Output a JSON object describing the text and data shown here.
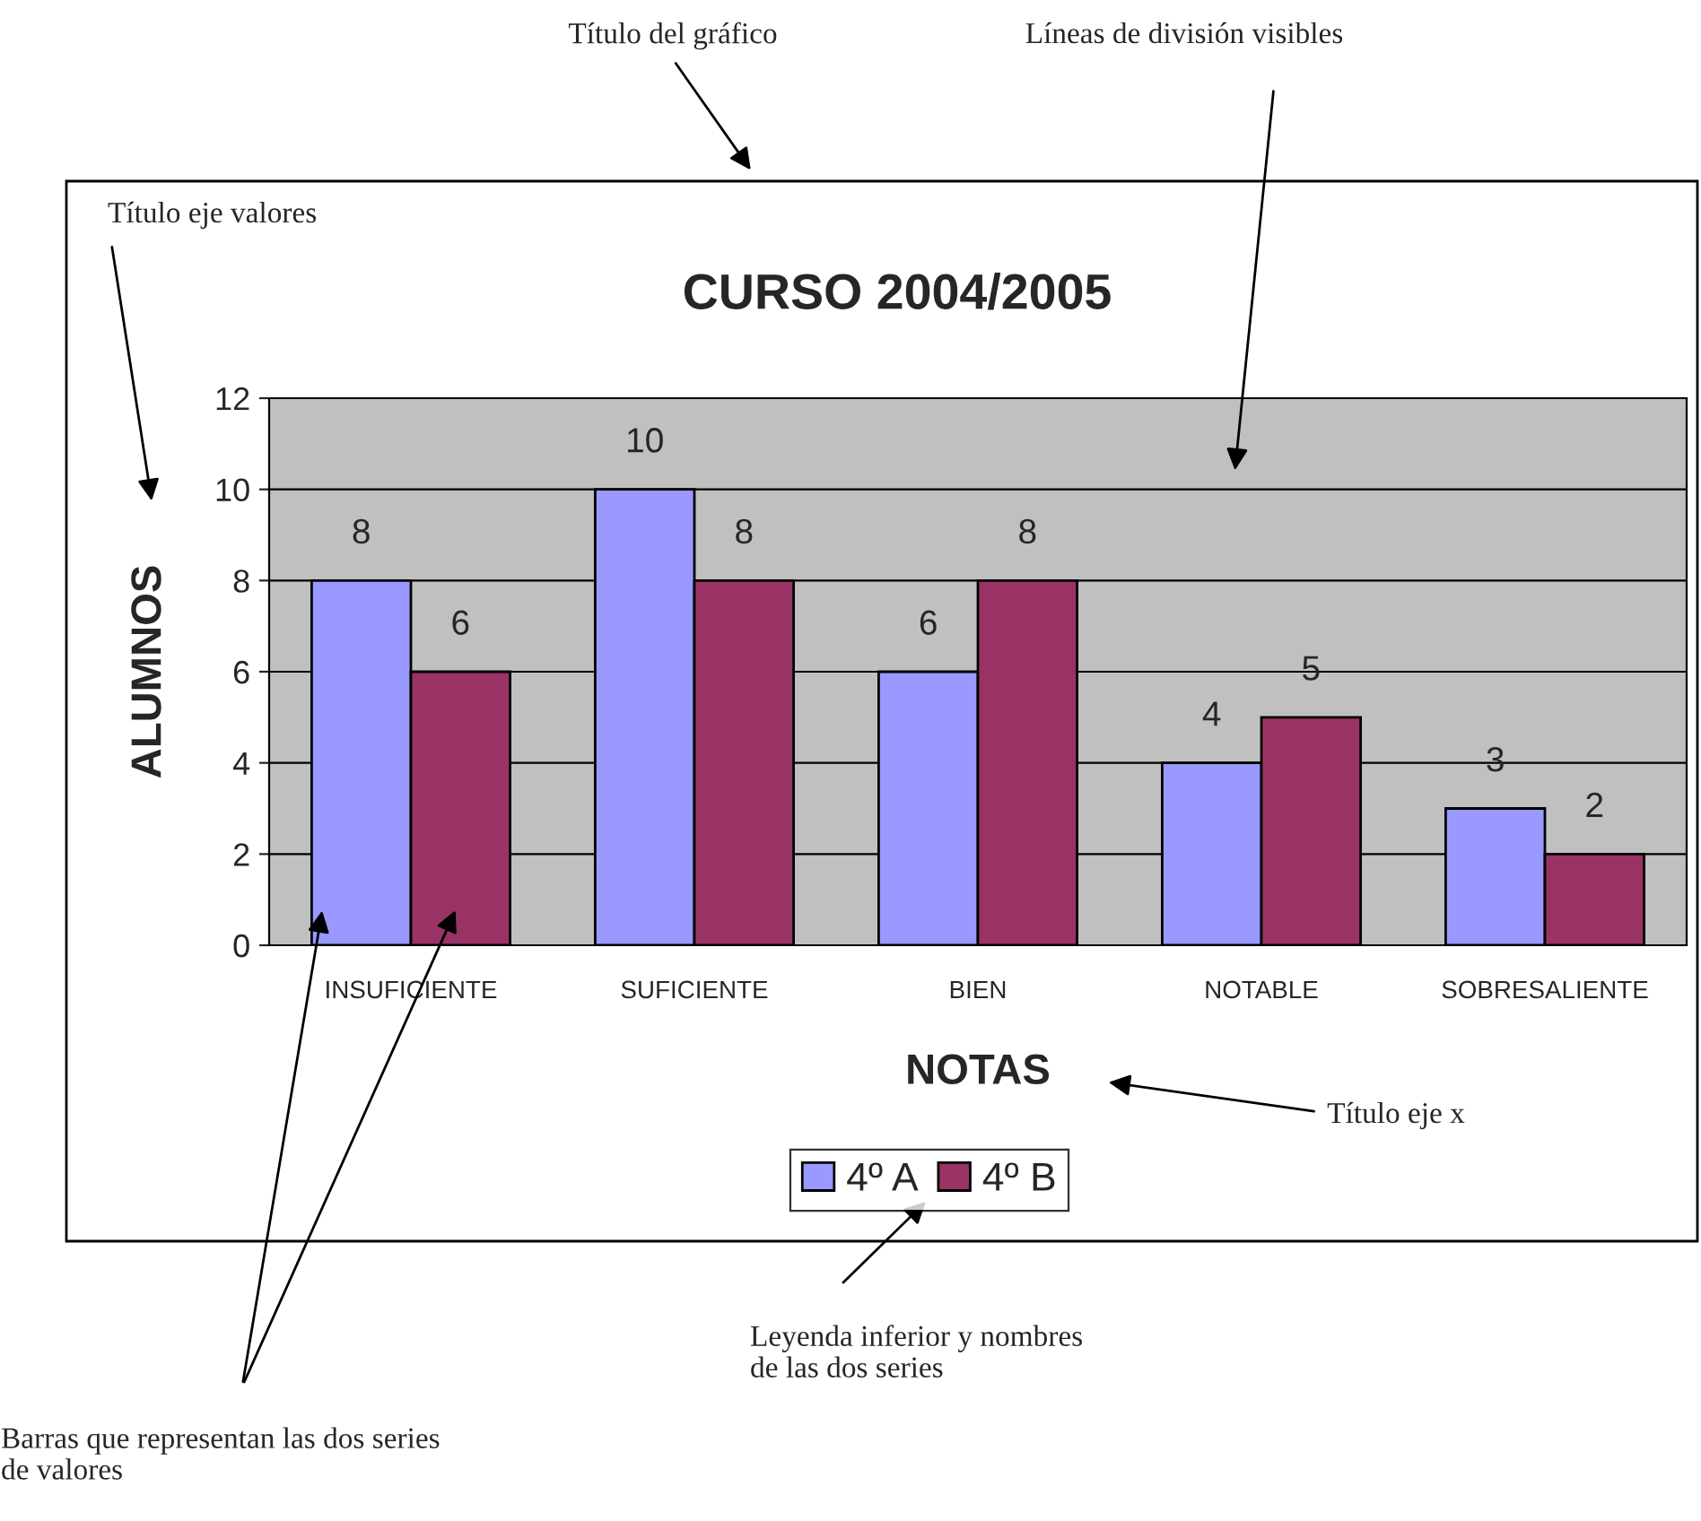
{
  "chart_data": {
    "type": "bar",
    "title": "CURSO 2004/2005",
    "xlabel": "NOTAS",
    "ylabel": "ALUMNOS",
    "categories": [
      "INSUFICIENTE",
      "SUFICIENTE",
      "BIEN",
      "NOTABLE",
      "SOBRESALIENTE"
    ],
    "series": [
      {
        "name": "4º A",
        "color": "#9999ff",
        "values": [
          8,
          10,
          6,
          4,
          3
        ]
      },
      {
        "name": "4º B",
        "color": "#993366",
        "values": [
          6,
          8,
          8,
          5,
          2
        ]
      }
    ],
    "ylim": [
      0,
      12
    ],
    "yticks": [
      0,
      2,
      4,
      6,
      8,
      10,
      12
    ],
    "grid": "y",
    "legend": "bottom",
    "data_labels": true,
    "annotations": [
      "Título del gráfico",
      "Líneas de división visibles",
      "Título eje valores",
      "Título eje x",
      "Leyenda inferior y nombres\nde las dos series",
      "Barras que representan las dos series\nde valores"
    ]
  }
}
